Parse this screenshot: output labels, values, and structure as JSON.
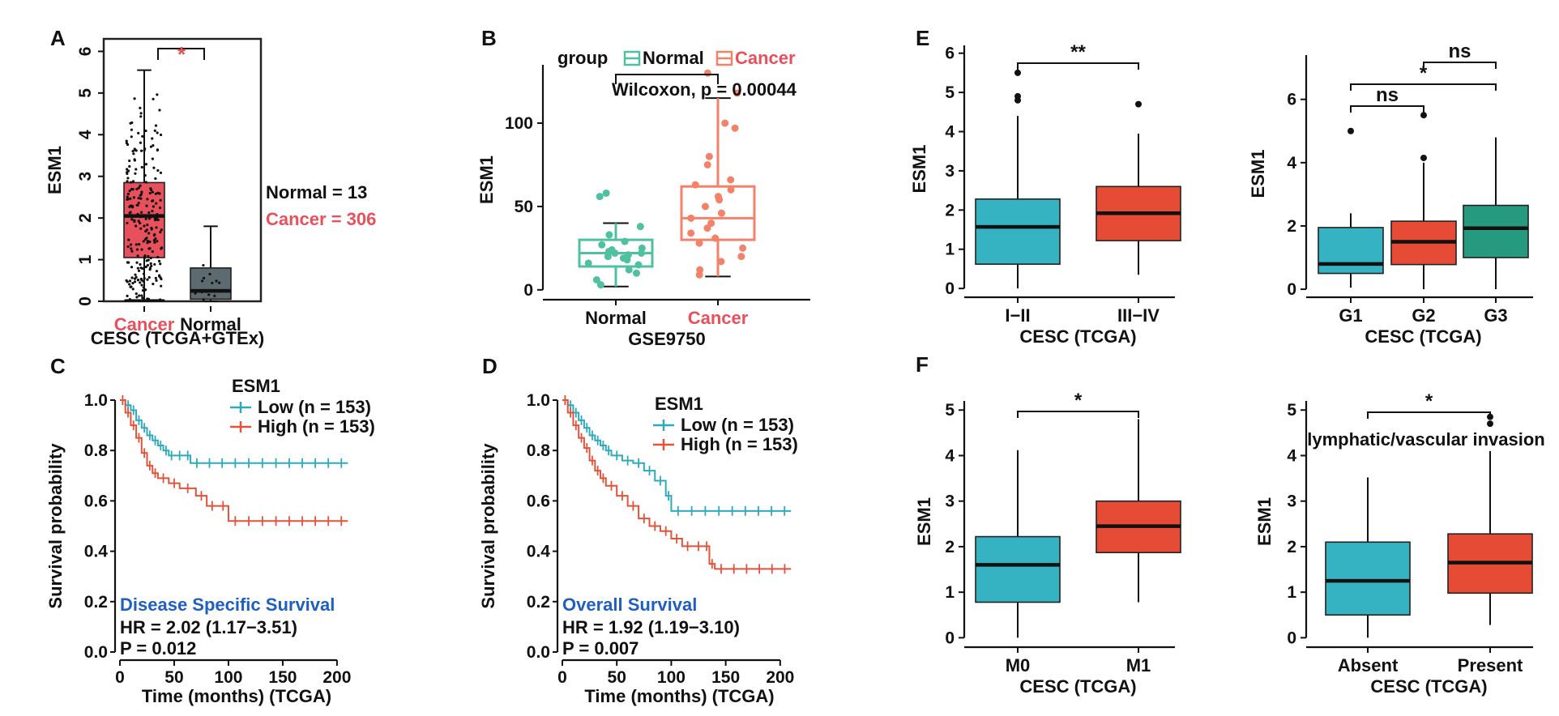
{
  "colors": {
    "cancer": "#e8505b",
    "normal": "#5c6b70",
    "teal": "#35b3c2",
    "red": "#e64b35",
    "green": "#259a7e",
    "mint": "#4fc1a0",
    "salmon": "#f4826b",
    "km_low": "#2eaabd",
    "km_high": "#e2533a",
    "blue": "#1f5fbf"
  },
  "chart_data": [
    {
      "id": "A",
      "type": "box",
      "panel_label": "A",
      "ylabel": "ESM1",
      "ylim": [
        0,
        6.3
      ],
      "yticks": [
        "0",
        "1",
        "2",
        "3",
        "4",
        "5",
        "6"
      ],
      "categories": [
        "Cancer",
        "Normal"
      ],
      "subtitle": "CESC (TCGA+GTEx)",
      "boxes": [
        {
          "name": "Cancer",
          "q1": 1.05,
          "median": 2.05,
          "q3": 2.85,
          "min": 0,
          "max": 5.55
        },
        {
          "name": "Normal",
          "q1": 0.05,
          "median": 0.25,
          "q3": 0.8,
          "min": 0,
          "max": 1.8
        }
      ],
      "sig": "*",
      "legend": [
        "Normal = 13",
        "Cancer = 306"
      ]
    },
    {
      "id": "B",
      "type": "box",
      "panel_label": "B",
      "ylabel": "ESM1",
      "ylim": [
        -3,
        135
      ],
      "yticks": [
        "0",
        "50",
        "100"
      ],
      "categories": [
        "Normal",
        "Cancer"
      ],
      "xlabel": "GSE9750",
      "legend_title": "group",
      "legend": [
        "Normal",
        "Cancer"
      ],
      "stat": "Wilcoxon, p = 0.00044",
      "boxes": [
        {
          "name": "Normal",
          "q1": 14,
          "median": 22,
          "q3": 30,
          "min": 2,
          "max": 40
        },
        {
          "name": "Cancer",
          "q1": 30,
          "median": 43,
          "q3": 62,
          "min": 8,
          "max": 115
        }
      ],
      "points": [
        {
          "g": 0,
          "y": 58
        },
        {
          "g": 0,
          "y": 56
        },
        {
          "g": 0,
          "y": 38
        },
        {
          "g": 0,
          "y": 33
        },
        {
          "g": 0,
          "y": 29
        },
        {
          "g": 0,
          "y": 27
        },
        {
          "g": 0,
          "y": 25
        },
        {
          "g": 0,
          "y": 24
        },
        {
          "g": 0,
          "y": 23
        },
        {
          "g": 0,
          "y": 22
        },
        {
          "g": 0,
          "y": 22
        },
        {
          "g": 0,
          "y": 21
        },
        {
          "g": 0,
          "y": 20
        },
        {
          "g": 0,
          "y": 19
        },
        {
          "g": 0,
          "y": 18
        },
        {
          "g": 0,
          "y": 16
        },
        {
          "g": 0,
          "y": 15
        },
        {
          "g": 0,
          "y": 12
        },
        {
          "g": 0,
          "y": 10
        },
        {
          "g": 0,
          "y": 6
        },
        {
          "g": 0,
          "y": 3
        },
        {
          "g": 1,
          "y": 130
        },
        {
          "g": 1,
          "y": 118
        },
        {
          "g": 1,
          "y": 100
        },
        {
          "g": 1,
          "y": 97
        },
        {
          "g": 1,
          "y": 80
        },
        {
          "g": 1,
          "y": 75
        },
        {
          "g": 1,
          "y": 66
        },
        {
          "g": 1,
          "y": 63
        },
        {
          "g": 1,
          "y": 60
        },
        {
          "g": 1,
          "y": 56
        },
        {
          "g": 1,
          "y": 54
        },
        {
          "g": 1,
          "y": 50
        },
        {
          "g": 1,
          "y": 46
        },
        {
          "g": 1,
          "y": 43
        },
        {
          "g": 1,
          "y": 40
        },
        {
          "g": 1,
          "y": 37
        },
        {
          "g": 1,
          "y": 34
        },
        {
          "g": 1,
          "y": 31
        },
        {
          "g": 1,
          "y": 28
        },
        {
          "g": 1,
          "y": 25
        },
        {
          "g": 1,
          "y": 20
        },
        {
          "g": 1,
          "y": 17
        },
        {
          "g": 1,
          "y": 12
        },
        {
          "g": 1,
          "y": 9
        }
      ]
    },
    {
      "id": "C",
      "type": "line",
      "panel_label": "C",
      "xlabel": "Time (months) (TCGA)",
      "ylabel": "Survival probability",
      "xlim": [
        0,
        215
      ],
      "ylim": [
        0,
        1
      ],
      "xticks": [
        "0",
        "50",
        "100",
        "150",
        "200"
      ],
      "yticks": [
        "0.0",
        "0.2",
        "0.4",
        "0.6",
        "0.8",
        "1.0"
      ],
      "legend_title": "ESM1",
      "series": [
        {
          "name": "Low (n = 153)",
          "x": [
            0,
            5,
            10,
            15,
            20,
            25,
            30,
            35,
            40,
            45,
            50,
            60,
            65,
            100,
            150,
            210
          ],
          "y": [
            1,
            0.98,
            0.96,
            0.92,
            0.89,
            0.86,
            0.84,
            0.82,
            0.8,
            0.78,
            0.78,
            0.78,
            0.75,
            0.75,
            0.75,
            0.75
          ]
        },
        {
          "name": "High (n = 153)",
          "x": [
            0,
            5,
            10,
            15,
            20,
            25,
            30,
            35,
            45,
            55,
            70,
            80,
            100,
            150,
            210
          ],
          "y": [
            1,
            0.95,
            0.9,
            0.85,
            0.79,
            0.74,
            0.71,
            0.69,
            0.67,
            0.65,
            0.62,
            0.58,
            0.52,
            0.52,
            0.52
          ]
        }
      ],
      "annotation_title": "Disease Specific Survival",
      "annotations": [
        "HR = 2.02 (1.17−3.51)",
        "P = 0.012"
      ]
    },
    {
      "id": "D",
      "type": "line",
      "panel_label": "D",
      "xlabel": "Time (months) (TCGA)",
      "ylabel": "Survival probability",
      "xlim": [
        0,
        215
      ],
      "ylim": [
        0,
        1
      ],
      "xticks": [
        "0",
        "50",
        "100",
        "150",
        "200"
      ],
      "yticks": [
        "0.0",
        "0.2",
        "0.4",
        "0.6",
        "0.8",
        "1.0"
      ],
      "legend_title": "ESM1",
      "series": [
        {
          "name": "Low (n = 153)",
          "x": [
            0,
            5,
            10,
            15,
            20,
            25,
            30,
            35,
            40,
            45,
            55,
            65,
            75,
            85,
            95,
            100,
            150,
            210
          ],
          "y": [
            1,
            0.98,
            0.95,
            0.92,
            0.89,
            0.86,
            0.84,
            0.82,
            0.8,
            0.78,
            0.76,
            0.75,
            0.72,
            0.68,
            0.62,
            0.56,
            0.56,
            0.56
          ]
        },
        {
          "name": "High (n = 153)",
          "x": [
            0,
            5,
            10,
            15,
            20,
            25,
            30,
            35,
            40,
            50,
            60,
            70,
            80,
            90,
            100,
            110,
            130,
            135,
            140,
            210
          ],
          "y": [
            1,
            0.95,
            0.9,
            0.85,
            0.81,
            0.76,
            0.72,
            0.69,
            0.66,
            0.62,
            0.58,
            0.53,
            0.5,
            0.48,
            0.45,
            0.42,
            0.42,
            0.35,
            0.33,
            0.33
          ]
        }
      ],
      "annotation_title": "Overall Survival",
      "annotations": [
        "HR = 1.92 (1.19−3.10)",
        "P = 0.007"
      ]
    },
    {
      "id": "E1",
      "type": "box",
      "panel_label": "E",
      "ylabel": "ESM1",
      "ylim": [
        -0.1,
        6.2
      ],
      "yticks": [
        "0",
        "1",
        "2",
        "3",
        "4",
        "5",
        "6"
      ],
      "categories": [
        "I−II",
        "III−IV"
      ],
      "xlabel": "CESC (TCGA)",
      "boxes": [
        {
          "name": "I−II",
          "q1": 0.62,
          "median": 1.57,
          "q3": 2.28,
          "min": 0,
          "max": 4.4,
          "outliers": [
            4.8,
            4.9,
            5.5
          ]
        },
        {
          "name": "III−IV",
          "q1": 1.22,
          "median": 1.92,
          "q3": 2.6,
          "min": 0.35,
          "max": 3.95,
          "outliers": [
            4.7
          ]
        }
      ],
      "brackets": [
        {
          "from": 0,
          "to": 1,
          "label": "**"
        }
      ]
    },
    {
      "id": "E2",
      "type": "box",
      "ylabel": "ESM1",
      "ylim": [
        -0.1,
        7.4
      ],
      "yticks": [
        "0",
        "2",
        "4",
        "6"
      ],
      "categories": [
        "G1",
        "G2",
        "G3"
      ],
      "xlabel": "CESC (TCGA)",
      "boxes": [
        {
          "name": "G1",
          "q1": 0.5,
          "median": 0.8,
          "q3": 1.95,
          "min": 0.05,
          "max": 2.4,
          "outliers": [
            5.0
          ]
        },
        {
          "name": "G2",
          "q1": 0.78,
          "median": 1.5,
          "q3": 2.15,
          "min": 0,
          "max": 4.0,
          "outliers": [
            4.15,
            5.5
          ]
        },
        {
          "name": "G3",
          "q1": 1.0,
          "median": 1.93,
          "q3": 2.65,
          "min": 0,
          "max": 4.8
        }
      ],
      "brackets": [
        {
          "from": 0,
          "to": 1,
          "label": "ns",
          "level": 0
        },
        {
          "from": 0,
          "to": 2,
          "label": "*",
          "level": 1
        },
        {
          "from": 1,
          "to": 2,
          "label": "ns",
          "level": 2
        }
      ]
    },
    {
      "id": "F1",
      "type": "box",
      "panel_label": "F",
      "ylabel": "ESM1",
      "ylim": [
        -0.1,
        5.2
      ],
      "yticks": [
        "0",
        "1",
        "2",
        "3",
        "4",
        "5"
      ],
      "categories": [
        "M0",
        "M1"
      ],
      "xlabel": "CESC (TCGA)",
      "boxes": [
        {
          "name": "M0",
          "q1": 0.78,
          "median": 1.6,
          "q3": 2.22,
          "min": 0,
          "max": 4.12
        },
        {
          "name": "M1",
          "q1": 1.87,
          "median": 2.45,
          "q3": 3.0,
          "min": 0.78,
          "max": 4.8
        }
      ],
      "brackets": [
        {
          "from": 0,
          "to": 1,
          "label": "*"
        }
      ]
    },
    {
      "id": "F2",
      "type": "box",
      "title": "lymphatic/vascular invasion",
      "ylabel": "ESM1",
      "ylim": [
        -0.1,
        5.2
      ],
      "yticks": [
        "0",
        "1",
        "2",
        "3",
        "4",
        "5"
      ],
      "categories": [
        "Absent",
        "Present"
      ],
      "xlabel": "CESC (TCGA)",
      "boxes": [
        {
          "name": "Absent",
          "q1": 0.5,
          "median": 1.25,
          "q3": 2.1,
          "min": 0,
          "max": 3.52
        },
        {
          "name": "Present",
          "q1": 0.98,
          "median": 1.65,
          "q3": 2.28,
          "min": 0.28,
          "max": 4.1,
          "outliers": [
            4.7,
            4.85
          ]
        }
      ],
      "brackets": [
        {
          "from": 0,
          "to": 1,
          "label": "*"
        }
      ]
    }
  ]
}
